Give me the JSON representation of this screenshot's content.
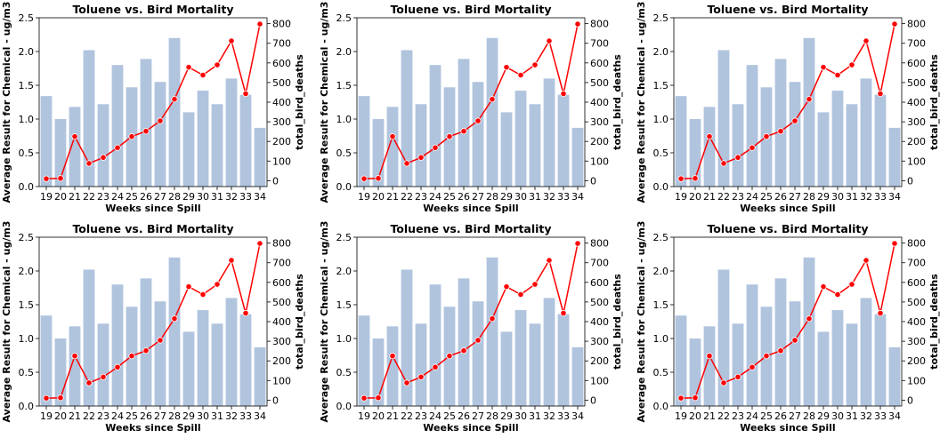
{
  "chart_data": [
    {
      "type": "bar+line",
      "title": "Toluene vs. Bird Mortality",
      "xlabel": "Weeks since Spill",
      "ylabel": "Average Result for Chemical - ug/m3",
      "ylabel_right": "total_bird_deaths",
      "categories": [
        "19",
        "20",
        "21",
        "22",
        "23",
        "24",
        "25",
        "26",
        "27",
        "28",
        "29",
        "30",
        "31",
        "32",
        "33",
        "34"
      ],
      "y_ticks": [
        "0.0",
        "0.5",
        "1.0",
        "1.5",
        "2.0",
        "2.5"
      ],
      "ylim": [
        0,
        2.5
      ],
      "y2_ticks": [
        "0",
        "100",
        "200",
        "300",
        "400",
        "500",
        "600",
        "700",
        "800"
      ],
      "y2lim": [
        -30,
        830
      ],
      "series": [
        {
          "type": "bar",
          "values": [
            1.34,
            1.0,
            1.18,
            2.02,
            1.22,
            1.8,
            1.47,
            1.89,
            1.55,
            2.2,
            1.1,
            1.42,
            1.22,
            1.6,
            1.36,
            0.87
          ]
        },
        {
          "type": "line",
          "values": [
            10,
            12,
            225,
            88,
            118,
            168,
            225,
            252,
            305,
            415,
            578,
            538,
            590,
            712,
            443,
            798
          ]
        }
      ],
      "colors": {
        "bar": "#b0c4de",
        "line": "#ff0000"
      },
      "grid": false
    },
    {
      "type": "bar+line",
      "title": "Toluene vs. Bird Mortality",
      "xlabel": "Weeks since Spill",
      "ylabel": "Average Result for Chemical - ug/m3",
      "ylabel_right": "total_bird_deaths",
      "categories": [
        "19",
        "20",
        "21",
        "22",
        "23",
        "24",
        "25",
        "26",
        "27",
        "28",
        "29",
        "30",
        "31",
        "32",
        "33",
        "34"
      ],
      "y_ticks": [
        "0.0",
        "0.5",
        "1.0",
        "1.5",
        "2.0",
        "2.5"
      ],
      "ylim": [
        0,
        2.5
      ],
      "y2_ticks": [
        "0",
        "100",
        "200",
        "300",
        "400",
        "500",
        "600",
        "700",
        "800"
      ],
      "y2lim": [
        -30,
        830
      ],
      "series": [
        {
          "type": "bar",
          "values": [
            1.34,
            1.0,
            1.18,
            2.02,
            1.22,
            1.8,
            1.47,
            1.89,
            1.55,
            2.2,
            1.1,
            1.42,
            1.22,
            1.6,
            1.36,
            0.87
          ]
        },
        {
          "type": "line",
          "values": [
            10,
            12,
            225,
            88,
            118,
            168,
            225,
            252,
            305,
            415,
            578,
            538,
            590,
            712,
            443,
            798
          ]
        }
      ],
      "colors": {
        "bar": "#b0c4de",
        "line": "#ff0000"
      },
      "grid": false
    },
    {
      "type": "bar+line",
      "title": "Toluene vs. Bird Mortality",
      "xlabel": "Weeks since Spill",
      "ylabel": "Average Result for Chemical - ug/m3",
      "ylabel_right": "total_bird_deaths",
      "categories": [
        "19",
        "20",
        "21",
        "22",
        "23",
        "24",
        "25",
        "26",
        "27",
        "28",
        "29",
        "30",
        "31",
        "32",
        "33",
        "34"
      ],
      "y_ticks": [
        "0.0",
        "0.5",
        "1.0",
        "1.5",
        "2.0",
        "2.5"
      ],
      "ylim": [
        0,
        2.5
      ],
      "y2_ticks": [
        "0",
        "100",
        "200",
        "300",
        "400",
        "500",
        "600",
        "700",
        "800"
      ],
      "y2lim": [
        -30,
        830
      ],
      "series": [
        {
          "type": "bar",
          "values": [
            1.34,
            1.0,
            1.18,
            2.02,
            1.22,
            1.8,
            1.47,
            1.89,
            1.55,
            2.2,
            1.1,
            1.42,
            1.22,
            1.6,
            1.36,
            0.87
          ]
        },
        {
          "type": "line",
          "values": [
            10,
            12,
            225,
            88,
            118,
            168,
            225,
            252,
            305,
            415,
            578,
            538,
            590,
            712,
            443,
            798
          ]
        }
      ],
      "colors": {
        "bar": "#b0c4de",
        "line": "#ff0000"
      },
      "grid": false
    },
    {
      "type": "bar+line",
      "title": "Toluene vs. Bird Mortality",
      "xlabel": "Weeks since Spill",
      "ylabel": "Average Result for Chemical - ug/m3",
      "ylabel_right": "total_bird_deaths",
      "categories": [
        "19",
        "20",
        "21",
        "22",
        "23",
        "24",
        "25",
        "26",
        "27",
        "28",
        "29",
        "30",
        "31",
        "32",
        "33",
        "34"
      ],
      "y_ticks": [
        "0.0",
        "0.5",
        "1.0",
        "1.5",
        "2.0",
        "2.5"
      ],
      "ylim": [
        0,
        2.5
      ],
      "y2_ticks": [
        "0",
        "100",
        "200",
        "300",
        "400",
        "500",
        "600",
        "700",
        "800"
      ],
      "y2lim": [
        -30,
        830
      ],
      "series": [
        {
          "type": "bar",
          "values": [
            1.34,
            1.0,
            1.18,
            2.02,
            1.22,
            1.8,
            1.47,
            1.89,
            1.55,
            2.2,
            1.1,
            1.42,
            1.22,
            1.6,
            1.36,
            0.87
          ]
        },
        {
          "type": "line",
          "values": [
            10,
            12,
            225,
            88,
            118,
            168,
            225,
            252,
            305,
            415,
            578,
            538,
            590,
            712,
            443,
            798
          ]
        }
      ],
      "colors": {
        "bar": "#b0c4de",
        "line": "#ff0000"
      },
      "grid": false
    },
    {
      "type": "bar+line",
      "title": "Toluene vs. Bird Mortality",
      "xlabel": "Weeks since Spill",
      "ylabel": "Average Result for Chemical - ug/m3",
      "ylabel_right": "total_bird_deaths",
      "categories": [
        "19",
        "20",
        "21",
        "22",
        "23",
        "24",
        "25",
        "26",
        "27",
        "28",
        "29",
        "30",
        "31",
        "32",
        "33",
        "34"
      ],
      "y_ticks": [
        "0.0",
        "0.5",
        "1.0",
        "1.5",
        "2.0",
        "2.5"
      ],
      "ylim": [
        0,
        2.5
      ],
      "y2_ticks": [
        "0",
        "100",
        "200",
        "300",
        "400",
        "500",
        "600",
        "700",
        "800"
      ],
      "y2lim": [
        -30,
        830
      ],
      "series": [
        {
          "type": "bar",
          "values": [
            1.34,
            1.0,
            1.18,
            2.02,
            1.22,
            1.8,
            1.47,
            1.89,
            1.55,
            2.2,
            1.1,
            1.42,
            1.22,
            1.6,
            1.36,
            0.87
          ]
        },
        {
          "type": "line",
          "values": [
            10,
            12,
            225,
            88,
            118,
            168,
            225,
            252,
            305,
            415,
            578,
            538,
            590,
            712,
            443,
            798
          ]
        }
      ],
      "colors": {
        "bar": "#b0c4de",
        "line": "#ff0000"
      },
      "grid": false
    },
    {
      "type": "bar+line",
      "title": "Toluene vs. Bird Mortality",
      "xlabel": "Weeks since Spill",
      "ylabel": "Average Result for Chemical - ug/m3",
      "ylabel_right": "total_bird_deaths",
      "categories": [
        "19",
        "20",
        "21",
        "22",
        "23",
        "24",
        "25",
        "26",
        "27",
        "28",
        "29",
        "30",
        "31",
        "32",
        "33",
        "34"
      ],
      "y_ticks": [
        "0.0",
        "0.5",
        "1.0",
        "1.5",
        "2.0",
        "2.5"
      ],
      "ylim": [
        0,
        2.5
      ],
      "y2_ticks": [
        "0",
        "100",
        "200",
        "300",
        "400",
        "500",
        "600",
        "700",
        "800"
      ],
      "y2lim": [
        -30,
        830
      ],
      "series": [
        {
          "type": "bar",
          "values": [
            1.34,
            1.0,
            1.18,
            2.02,
            1.22,
            1.8,
            1.47,
            1.89,
            1.55,
            2.2,
            1.1,
            1.42,
            1.22,
            1.6,
            1.36,
            0.87
          ]
        },
        {
          "type": "line",
          "values": [
            10,
            12,
            225,
            88,
            118,
            168,
            225,
            252,
            305,
            415,
            578,
            538,
            590,
            712,
            443,
            798
          ]
        }
      ],
      "colors": {
        "bar": "#b0c4de",
        "line": "#ff0000"
      },
      "grid": false
    }
  ]
}
